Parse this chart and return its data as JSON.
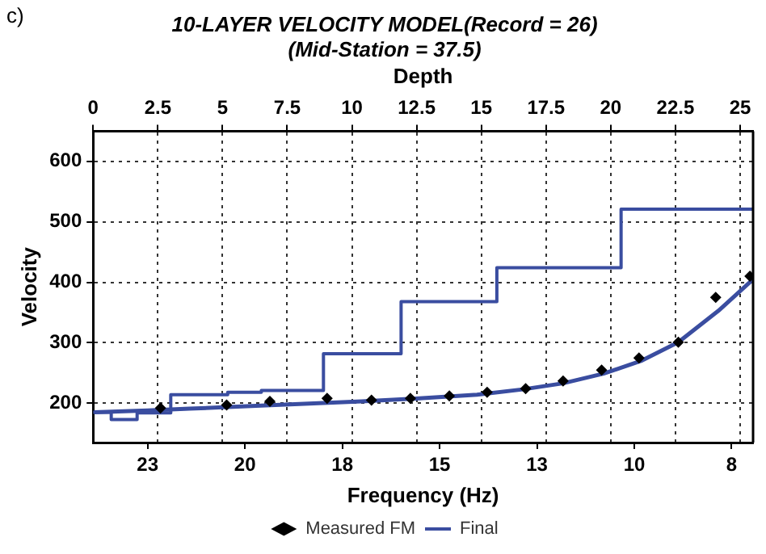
{
  "chart_data": {
    "type": "line",
    "title": "10-LAYER VELOCITY MODEL(Record = 26)",
    "subtitle": "(Mid-Station = 37.5)",
    "annotations": [
      "c)"
    ],
    "xlabel": "Frequency (Hz)",
    "ylabel": "Velocity",
    "x2label": "Depth",
    "xlim": [
      24.4,
      7.45
    ],
    "xticks": [
      {
        "value": 23,
        "label": "23"
      },
      {
        "value": 20.5,
        "label": "20"
      },
      {
        "value": 18,
        "label": "18"
      },
      {
        "value": 15.5,
        "label": "15"
      },
      {
        "value": 13,
        "label": "13"
      },
      {
        "value": 10.5,
        "label": "10"
      },
      {
        "value": 8,
        "label": "8"
      }
    ],
    "x2lim": [
      0,
      25.5
    ],
    "x2ticks": [
      0,
      2.5,
      5,
      7.5,
      10,
      12.5,
      15,
      17.5,
      20,
      22.5,
      25
    ],
    "ylim": [
      135,
      650
    ],
    "yticks": [
      200,
      300,
      400,
      500,
      600
    ],
    "grid": true,
    "legend": "bottom",
    "series": [
      {
        "name": "Final",
        "type": "step",
        "axis": "x2",
        "color": "#3a4da0",
        "x": [
          0,
          0.7,
          1.7,
          3.0,
          5.2,
          6.5,
          8.9,
          11.9,
          15.6,
          20.4,
          25.5
        ],
        "values": [
          185,
          173,
          184,
          214,
          218,
          221,
          282,
          368,
          424,
          521,
          521
        ]
      },
      {
        "type": "line",
        "color": "#3a4da0",
        "x": [
          24.37,
          23.0,
          21.93,
          20.46,
          18.98,
          17.5,
          16.02,
          14.54,
          13.36,
          12.33,
          11.29,
          10.33,
          9.37,
          8.34,
          7.45
        ],
        "values": [
          185,
          188,
          191,
          195,
          199,
          203,
          208,
          214,
          223,
          233,
          249,
          270,
          301,
          353,
          405
        ]
      },
      {
        "name": "Measured FM",
        "type": "scatter",
        "marker": "diamond",
        "color": "#000000",
        "x": [
          22.67,
          20.97,
          19.86,
          18.39,
          17.25,
          16.25,
          15.25,
          14.28,
          13.29,
          12.33,
          11.34,
          10.38,
          9.37,
          8.41,
          7.53
        ],
        "values": [
          192,
          197,
          203,
          208,
          205,
          208,
          212,
          218,
          224,
          237,
          255,
          275,
          301,
          375,
          410
        ]
      }
    ]
  }
}
